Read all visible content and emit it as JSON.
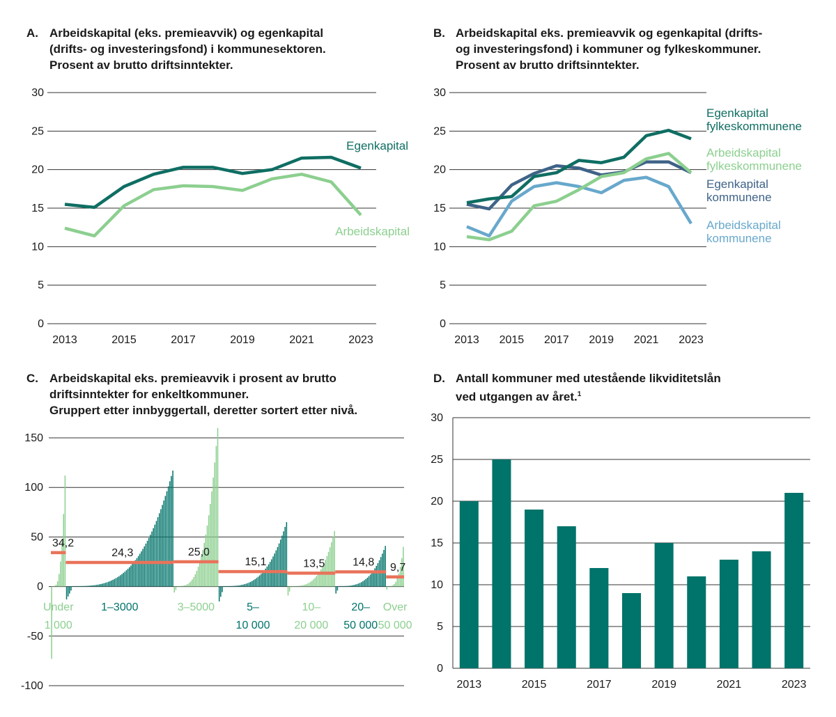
{
  "colors": {
    "dark_teal": "#0f6e63",
    "light_green": "#8ccf8f",
    "blue": "#3f6388",
    "light_blue": "#68a8cc",
    "bar": "#00736a",
    "mean": "#e9735a",
    "grid": "#333333"
  },
  "chart_data": [
    {
      "id": "A",
      "type": "line",
      "letter": "A.",
      "title": "Arbeidskapital (eks. premieavvik) og egenkapital\n(drifts- og investeringsfond) i kommunesektoren.\nProsent av brutto driftsinntekter.",
      "x": [
        2013,
        2014,
        2015,
        2016,
        2017,
        2018,
        2019,
        2020,
        2021,
        2022,
        2023
      ],
      "xticks": [
        "2013",
        "2015",
        "2017",
        "2019",
        "2021",
        "2023"
      ],
      "yticks": [
        "0",
        "5",
        "10",
        "15",
        "20",
        "25",
        "30"
      ],
      "ylim": [
        0,
        30
      ],
      "series": [
        {
          "name": "Egenkapital",
          "color": "#0f6e63",
          "values": [
            15.5,
            15.1,
            17.8,
            19.4,
            20.3,
            20.3,
            19.5,
            20.0,
            21.5,
            21.6,
            20.2
          ]
        },
        {
          "name": "Arbeidskapital",
          "color": "#8ccf8f",
          "values": [
            12.4,
            11.4,
            15.3,
            17.4,
            17.9,
            17.8,
            17.3,
            18.8,
            19.4,
            18.4,
            14.1
          ]
        }
      ]
    },
    {
      "id": "B",
      "type": "line",
      "letter": "B.",
      "title": "Arbeidskapital eks. premieavvik og egenkapital (drifts-\nog investeringsfond) i kommuner og fylkeskommuner.\nProsent av brutto driftsinntekter.",
      "x": [
        2013,
        2014,
        2015,
        2016,
        2017,
        2018,
        2019,
        2020,
        2021,
        2022,
        2023
      ],
      "xticks": [
        "2013",
        "2015",
        "2017",
        "2019",
        "2021",
        "2023"
      ],
      "yticks": [
        "0",
        "5",
        "10",
        "15",
        "20",
        "25",
        "30"
      ],
      "ylim": [
        0,
        30
      ],
      "series": [
        {
          "name": "Arbeidskapital kommunene",
          "label1": "Arbeidskapital",
          "label2": "kommunene",
          "color": "#68a8cc",
          "values": [
            12.6,
            11.4,
            15.9,
            17.8,
            18.3,
            17.8,
            17.0,
            18.6,
            19.0,
            17.8,
            13.0
          ]
        },
        {
          "name": "Egenkapital kommunene",
          "label1": "Egenkapital",
          "label2": "kommunene",
          "color": "#3f6388",
          "values": [
            15.5,
            14.9,
            18.0,
            19.5,
            20.5,
            20.2,
            19.3,
            19.7,
            21.0,
            21.0,
            19.6
          ]
        },
        {
          "name": "Arbeidskapital fylkeskommunene",
          "label1": "Arbeidskapital",
          "label2": "fylkeskommunene",
          "color": "#8ccf8f",
          "values": [
            11.3,
            10.9,
            12.0,
            15.3,
            15.9,
            17.4,
            19.1,
            19.6,
            21.4,
            22.1,
            19.6
          ]
        },
        {
          "name": "Egenkapital fylkeskommunene",
          "label1": "Egenkapital",
          "label2": "fylkeskommunene",
          "color": "#0f6e63",
          "values": [
            15.7,
            16.2,
            16.5,
            19.1,
            19.6,
            21.2,
            20.9,
            21.6,
            24.4,
            25.1,
            24.0
          ]
        }
      ]
    },
    {
      "id": "C",
      "type": "bar",
      "letter": "C.",
      "title": "Arbeidskapital eks. premieavvik i prosent av brutto\ndriftsinntekter for enkeltkommuner.\nGruppert etter innbyggertall, deretter sortert etter nivå.",
      "yticks": [
        "-100",
        "-50",
        "0",
        "50",
        "100",
        "150"
      ],
      "ylim": [
        -100,
        150
      ],
      "groups": [
        {
          "label1": "Under",
          "label2": "1 000",
          "mean": 34.2,
          "mean_label": "34,2",
          "count": 10,
          "min": 0.5,
          "max": 112,
          "neg_min": -72,
          "color": "#8ccf8f"
        },
        {
          "label1": "1–3000",
          "label2": "",
          "mean": 24.3,
          "mean_label": "24,3",
          "count": 72,
          "min": 0.5,
          "max": 117,
          "neg_min": -12,
          "color": "#00736a"
        },
        {
          "label1": "3–5000",
          "label2": "",
          "mean": 25.0,
          "mean_label": "25,0",
          "count": 30,
          "min": 0.5,
          "max": 160,
          "neg_min": -5,
          "color": "#8ccf8f"
        },
        {
          "label1": "5–",
          "label2": "10 000",
          "mean": 15.1,
          "mean_label": "15,1",
          "count": 46,
          "min": 0.5,
          "max": 65,
          "neg_min": -14,
          "color": "#00736a"
        },
        {
          "label1": "10–",
          "label2": "20 000",
          "mean": 13.5,
          "mean_label": "13,5",
          "count": 32,
          "min": 0.5,
          "max": 56,
          "neg_min": -8,
          "color": "#8ccf8f"
        },
        {
          "label1": "20–",
          "label2": "50 000",
          "mean": 14.8,
          "mean_label": "14,8",
          "count": 34,
          "min": 0.5,
          "max": 41,
          "neg_min": -6,
          "color": "#00736a"
        },
        {
          "label1": "Over",
          "label2": "50 000",
          "mean": 9.7,
          "mean_label": "9,7",
          "count": 12,
          "min": 0.5,
          "max": 40,
          "neg_min": -2,
          "color": "#8ccf8f"
        }
      ]
    },
    {
      "id": "D",
      "type": "bar",
      "letter": "D.",
      "title": "Antall kommuner med utestående likviditetslån\nved utgangen av året.",
      "title_sup": "1",
      "categories": [
        2013,
        2014,
        2015,
        2016,
        2017,
        2018,
        2019,
        2020,
        2021,
        2022,
        2023
      ],
      "values": [
        20,
        25,
        19,
        17,
        12,
        9,
        15,
        11,
        13,
        14,
        21
      ],
      "xticks": [
        "2013",
        "2015",
        "2017",
        "2019",
        "2021",
        "2023"
      ],
      "yticks": [
        "0",
        "5",
        "10",
        "15",
        "20",
        "25",
        "30"
      ],
      "ylim": [
        0,
        30
      ]
    }
  ]
}
